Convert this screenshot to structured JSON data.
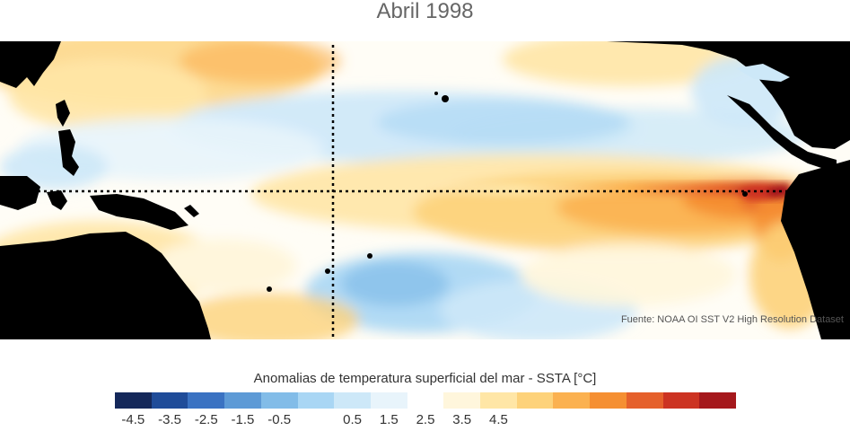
{
  "title": "Abril 1998",
  "source": "Fuente: NOAA OI SST V2 High Resolution Dataset",
  "colorbar": {
    "label": "Anomalias de temperatura superficial del mar - SSTA  [°C]",
    "colors": [
      "#14285a",
      "#1f4c99",
      "#3a72c2",
      "#5d9ad6",
      "#82bce8",
      "#a9d6f4",
      "#cde8f8",
      "#e8f4fb",
      "#ffffff",
      "#fff6dc",
      "#ffe6a6",
      "#fdd27a",
      "#fbb150",
      "#f58f32",
      "#e5602b",
      "#cc3322",
      "#a5181c"
    ],
    "ticks": [
      "-4.5",
      "-3.5",
      "-2.5",
      "-1.5",
      "-0.5",
      "0.5",
      "1.5",
      "2.5",
      "3.5",
      "4.5"
    ]
  },
  "map": {
    "land_color": "#000000",
    "reference_lines": "dotted lines: equator and 180° meridian"
  }
}
